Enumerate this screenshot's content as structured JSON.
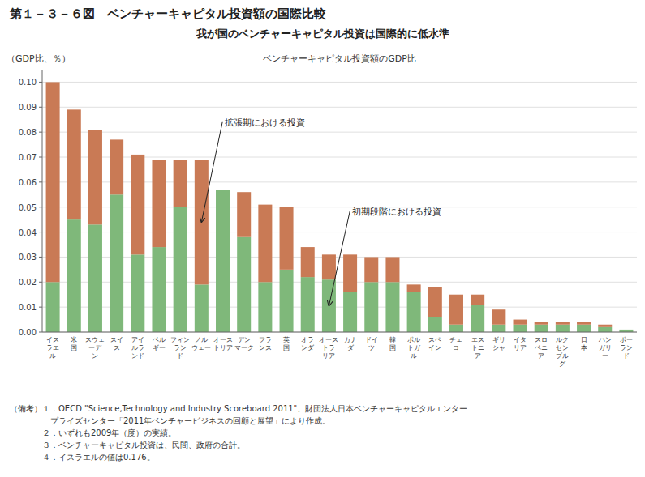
{
  "chart_data": {
    "type": "bar",
    "stacked": true,
    "title": "第１－３－６図　ベンチャーキャピタル投資額の国際比較",
    "subtitle": "我が国のベンチャーキャピタル投資は国際的に低水準",
    "plot_title": "ベンチャーキャピタル投資額のGDP比",
    "y_label": "（GDP比、％）",
    "categories": [
      "イス\nラエ\nル",
      "米\n国",
      "スウェ\nーデ\nン",
      "スイ\nス",
      "アイ\nルラ\nンド",
      "ベル\nギー",
      "フィン\nラン\nド",
      "ノル\nウェー",
      "オース\nトリア",
      "デン\nマーク",
      "フラ\nンス",
      "英\n国",
      "オラ\nンダ",
      "オース\nトラ\nリア",
      "カナ\nダ",
      "ドイ\nツ",
      "韓\n国",
      "ポル\nトガ\nル",
      "スペ\nイン",
      "チェ\nコ",
      "エス\nトニ\nア",
      "ギリ\nシャ",
      "イタ\nリア",
      "スロ\nベニ\nア",
      "ルク\nセン\nブル\nグ",
      "日\n本",
      "ハン\nガリ\nー",
      "ポー\nラン\nド"
    ],
    "series": [
      {
        "name": "初期段階における投資",
        "color": "#7fb87a",
        "values": [
          0.02,
          0.045,
          0.043,
          0.055,
          0.031,
          0.034,
          0.05,
          0.019,
          0.057,
          0.038,
          0.02,
          0.025,
          0.022,
          0.021,
          0.016,
          0.02,
          0.02,
          0.016,
          0.006,
          0.003,
          0.011,
          0.003,
          0.003,
          0.003,
          0.003,
          0.003,
          0.002,
          0.001
        ]
      },
      {
        "name": "拡張期における投資",
        "color": "#c97a55",
        "values": [
          0.08,
          0.044,
          0.038,
          0.022,
          0.04,
          0.035,
          0.019,
          0.05,
          0.0,
          0.018,
          0.031,
          0.025,
          0.012,
          0.01,
          0.015,
          0.01,
          0.01,
          0.003,
          0.012,
          0.012,
          0.004,
          0.006,
          0.002,
          0.001,
          0.001,
          0.001,
          0.001,
          0.0
        ]
      }
    ],
    "ylim": [
      0,
      0.105
    ],
    "yticks": [
      {
        "value": 0,
        "label": "0.00"
      },
      0.01,
      0.02,
      0.03,
      0.04,
      0.05,
      0.06,
      0.07,
      0.08,
      0.09,
      {
        "value": 0.1,
        "label": "0.10"
      }
    ],
    "grid": true,
    "notes": [
      "（備考）１．OECD \"Science,Technology and Industry Scoreboard 2011\"、財団法人日本ベンチャーキャピタルエンター",
      "　　　　　プライズセンター「2011年ベンチャービジネスの回顧と展望」により作成。",
      "　　　　２．いずれも2009年（度）の実績。",
      "　　　　３．ベンチャーキャピタル投資は、民間、政府の合計。",
      "　　　　４．イスラエルの値は0.176。"
    ]
  }
}
